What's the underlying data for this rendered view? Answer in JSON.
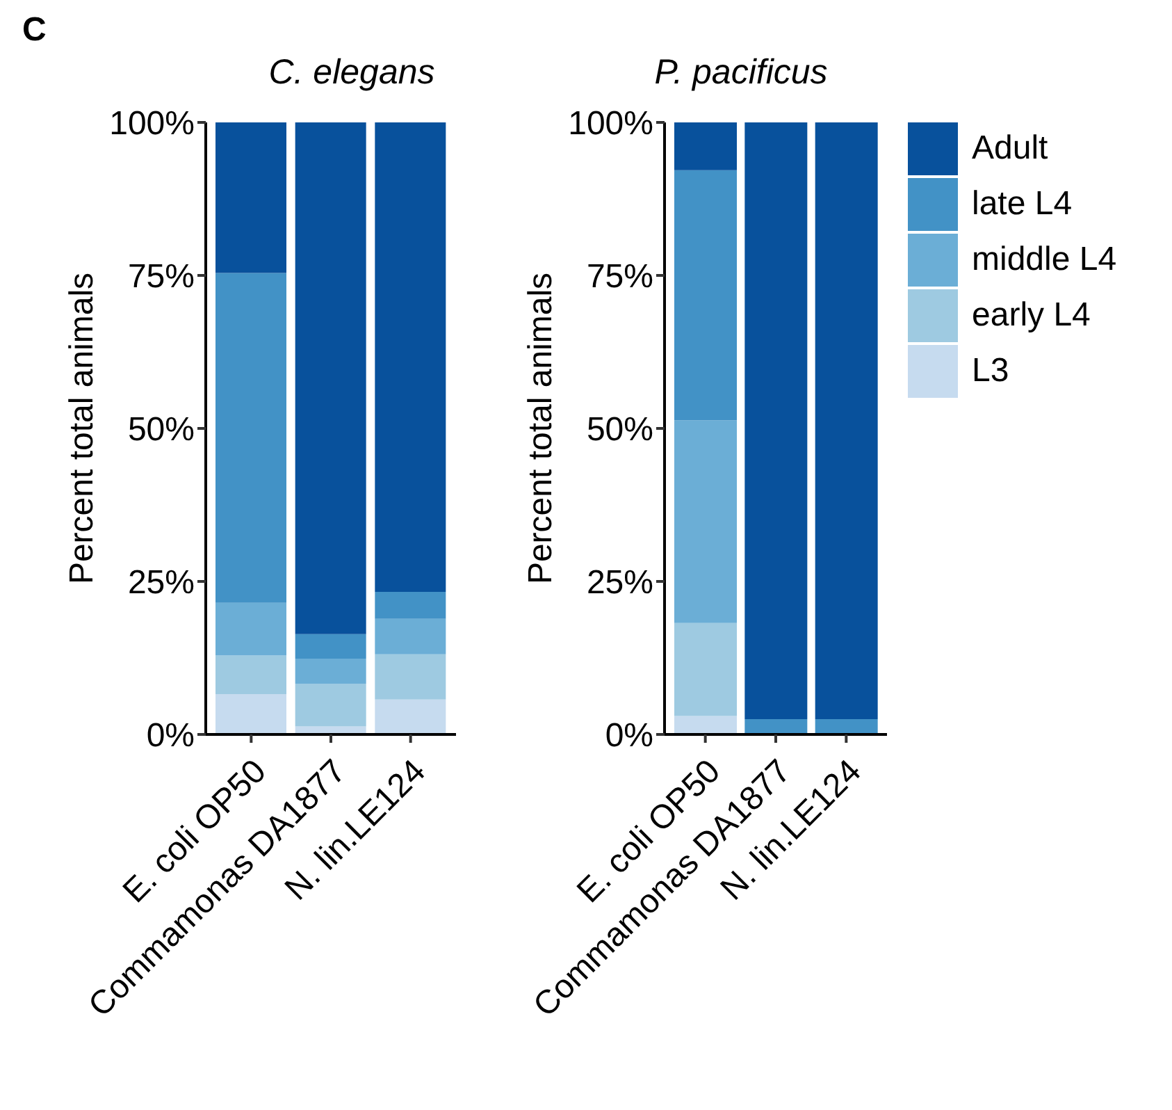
{
  "chart_data": [
    {
      "type": "bar",
      "title": "C. elegans",
      "ylabel": "Percent total animals",
      "annotations": [
        "C"
      ],
      "stacked": true,
      "categories": [
        "E. coli OP50",
        "Commamonas DA1877",
        "N. lin.LE124"
      ],
      "ylim": [
        0,
        100
      ],
      "yticks": [
        {
          "value": 0,
          "label": "0%"
        },
        {
          "value": 25,
          "label": "25%"
        },
        {
          "value": 50,
          "label": "50%"
        },
        {
          "value": 75,
          "label": "75%"
        },
        {
          "value": 100,
          "label": "100%"
        }
      ],
      "grid": false,
      "legend": false,
      "series": [
        {
          "color": "#c6dbef",
          "values": [
            6.6,
            1.3,
            5.7
          ]
        },
        {
          "color": "#9ecae1",
          "values": [
            6.3,
            7.0,
            7.4
          ]
        },
        {
          "color": "#6baed6",
          "values": [
            8.6,
            4.1,
            5.8
          ]
        },
        {
          "color": "#4292c6",
          "values": [
            53.9,
            4.0,
            4.4
          ]
        },
        {
          "color": "#08519c",
          "values": [
            24.6,
            83.6,
            76.7
          ]
        }
      ]
    },
    {
      "type": "bar",
      "title": "P. pacificus",
      "ylabel": "Percent total animals",
      "stacked": true,
      "categories": [
        "E. coli OP50",
        "Commamonas DA1877",
        "N. lin.LE124"
      ],
      "ylim": [
        0,
        100
      ],
      "yticks": [
        {
          "value": 0,
          "label": "0%"
        },
        {
          "value": 25,
          "label": "25%"
        },
        {
          "value": 50,
          "label": "50%"
        },
        {
          "value": 75,
          "label": "75%"
        },
        {
          "value": 100,
          "label": "100%"
        }
      ],
      "grid": false,
      "legend": "right",
      "series": [
        {
          "name": "L3",
          "color": "#c6dbef",
          "values": [
            3.0,
            0.2,
            0.2
          ]
        },
        {
          "name": "early L4",
          "color": "#9ecae1",
          "values": [
            15.2,
            0,
            0
          ]
        },
        {
          "name": "middle L4",
          "color": "#6baed6",
          "values": [
            33.1,
            0,
            0
          ]
        },
        {
          "name": "late L4",
          "color": "#4292c6",
          "values": [
            40.9,
            2.3,
            2.3
          ]
        },
        {
          "name": "Adult",
          "color": "#08519c",
          "values": [
            7.8,
            97.5,
            97.5
          ]
        }
      ]
    }
  ]
}
